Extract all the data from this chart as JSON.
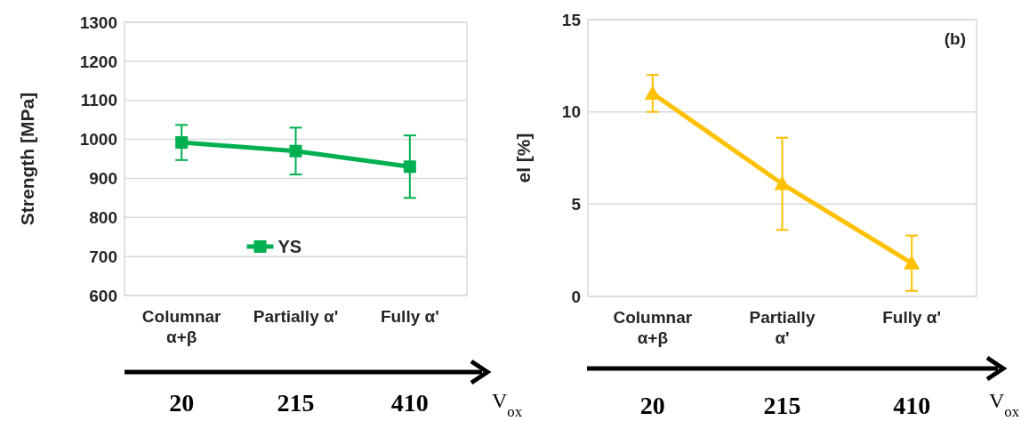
{
  "chart_data": [
    {
      "type": "line",
      "ylabel": "Strength [MPa]",
      "categories": [
        "Columnar α+β",
        "Partially α'",
        "Fully α'"
      ],
      "series": [
        {
          "name": "YS",
          "color": "#00b050",
          "values": [
            992,
            970,
            930
          ],
          "errors": [
            45,
            60,
            80
          ]
        }
      ],
      "ylim": [
        600,
        1300
      ],
      "yticks": [
        600,
        700,
        800,
        900,
        1000,
        1100,
        1200,
        1300
      ],
      "grid": "y",
      "legend": "bottom",
      "marker": "square",
      "annotations": [
        "20",
        "215",
        "410",
        "V$_{ox}$"
      ]
    },
    {
      "type": "line",
      "title": "(b)",
      "ylabel": "el [%]",
      "categories": [
        "Columnar α+β",
        "Partially α'",
        "Fully α'"
      ],
      "series": [
        {
          "color": "#ffc000",
          "values": [
            11,
            6.1,
            1.8
          ],
          "errors": [
            1,
            2.5,
            1.5
          ]
        }
      ],
      "ylim": [
        0,
        15
      ],
      "yticks": [
        0,
        5,
        10,
        15
      ],
      "grid": "y",
      "legend": false,
      "marker": "triangle",
      "annotations": [
        "20",
        "215",
        "410",
        "V$_{ox}$"
      ]
    }
  ]
}
